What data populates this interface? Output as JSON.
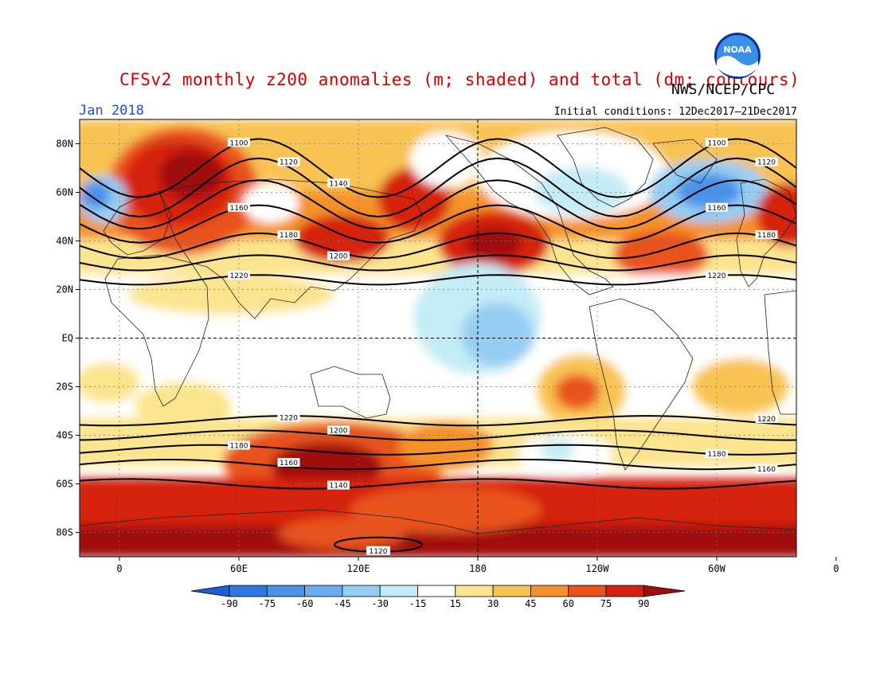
{
  "header": {
    "title": "CFSv2 monthly z200 anomalies (m; shaded) and total (dm; contours)",
    "agency": "NWS/NCEP/CPC",
    "month": "Jan 2018",
    "initial_conditions": "Initial conditions: 12Dec2017–21Dec2017"
  },
  "logo": {
    "icon": "noaa-logo-icon",
    "text": "NOAA"
  },
  "map": {
    "lon_range": [
      -20,
      340
    ],
    "lat_range": [
      -90,
      90
    ],
    "lat_labels": [
      "80N",
      "60N",
      "40N",
      "20N",
      "EQ",
      "20S",
      "40S",
      "60S",
      "80S"
    ],
    "lat_values": [
      80,
      60,
      40,
      20,
      0,
      -20,
      -40,
      -60,
      -80
    ],
    "lon_labels": [
      "0",
      "60E",
      "120E",
      "180",
      "120W",
      "60W",
      "0"
    ],
    "lon_values": [
      0,
      60,
      120,
      180,
      240,
      300,
      360
    ],
    "dateline_dashed": true,
    "equator_dashed": true,
    "grid": "dotted"
  },
  "legend": {
    "ticks": [
      "-90",
      "-75",
      "-60",
      "-45",
      "-30",
      "-15",
      "15",
      "30",
      "45",
      "60",
      "75",
      "90"
    ],
    "colors": [
      "#1e5fd6",
      "#2e78e2",
      "#4a92ea",
      "#6aacee",
      "#96cdf2",
      "#c3ecf6",
      "#ffffff",
      "#fbe48e",
      "#f8c352",
      "#f5922c",
      "#e9521a",
      "#d52210",
      "#a00f0a"
    ]
  },
  "contours": [
    {
      "label": "1100",
      "lat_mean": 70
    },
    {
      "label": "1120",
      "lat_mean": 62
    },
    {
      "label": "1140",
      "lat_mean": 55
    },
    {
      "label": "1160",
      "lat_mean": 47
    },
    {
      "label": "1180",
      "lat_mean": 38
    },
    {
      "label": "1200",
      "lat_mean": 31
    },
    {
      "label": "1220",
      "lat_mean": 24
    },
    {
      "label": "1220",
      "lat_mean": -34
    },
    {
      "label": "1200",
      "lat_mean": -40
    },
    {
      "label": "1180",
      "lat_mean": -46
    },
    {
      "label": "1160",
      "lat_mean": -52
    },
    {
      "label": "1140",
      "lat_mean": -60
    },
    {
      "label": "1120",
      "lat_mean": -85
    }
  ]
}
